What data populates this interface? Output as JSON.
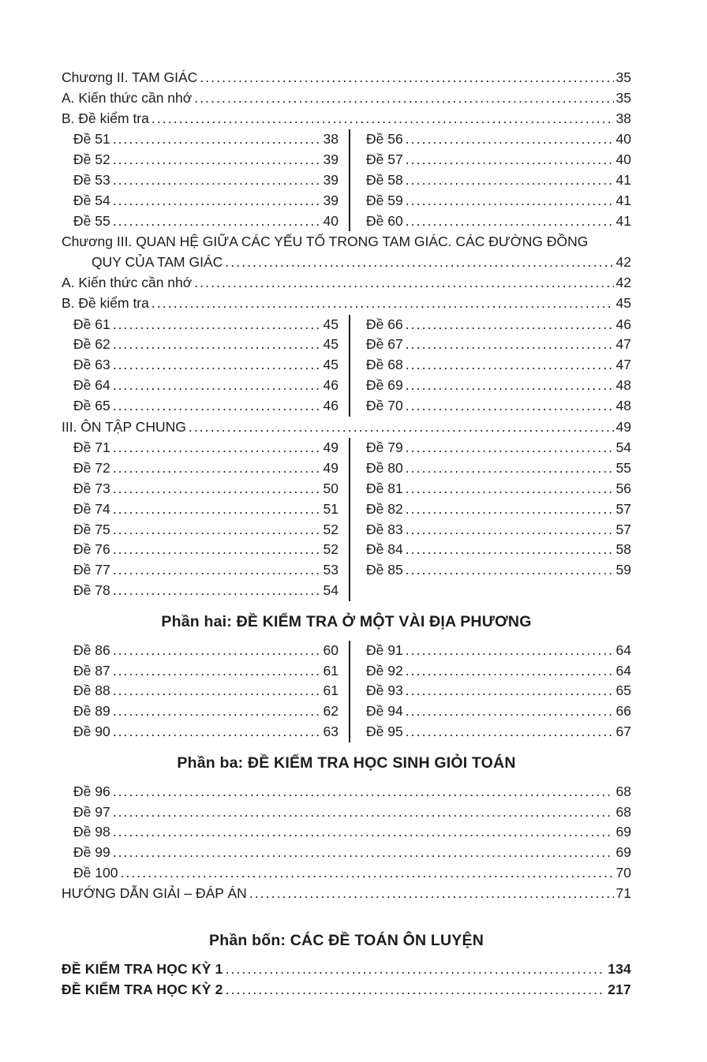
{
  "document": {
    "kind": "table-of-contents",
    "language": "vi"
  },
  "colors": {
    "background": "#ffffff",
    "text": "#1d1d1d",
    "divider": "#1d1d1d"
  },
  "toc": {
    "blocks": [
      {
        "type": "entry",
        "label": "Chương II. TAM GIÁC",
        "page": "35",
        "indent": 0
      },
      {
        "type": "entry",
        "label": "A. Kiến thức cần nhớ",
        "page": "35",
        "indent": 0
      },
      {
        "type": "entry",
        "label": "B. Đề kiểm tra",
        "page": "38",
        "indent": 0
      },
      {
        "type": "twocol",
        "left": [
          {
            "label": "Đề 51",
            "page": "38"
          },
          {
            "label": "Đề 52",
            "page": "39"
          },
          {
            "label": "Đề 53",
            "page": "39"
          },
          {
            "label": "Đề 54",
            "page": "39"
          },
          {
            "label": "Đề 55",
            "page": "40"
          }
        ],
        "right": [
          {
            "label": "Đề 56",
            "page": "40"
          },
          {
            "label": "Đề 57",
            "page": "40"
          },
          {
            "label": "Đề 58",
            "page": "41"
          },
          {
            "label": "Đề 59",
            "page": "41"
          },
          {
            "label": "Đề 60",
            "page": "41"
          }
        ]
      },
      {
        "type": "entry",
        "label": "Chương III. QUAN HỆ GIỮA CÁC YẾU TỐ TRONG TAM GIÁC. CÁC ĐƯỜNG ĐỒNG",
        "page": null,
        "indent": 0
      },
      {
        "type": "entry",
        "label": "QUY CỦA TAM GIÁC",
        "page": "42",
        "indent": 1
      },
      {
        "type": "entry",
        "label": "A. Kiến thức cần nhớ",
        "page": "42",
        "indent": 0
      },
      {
        "type": "entry",
        "label": "B. Đề kiểm tra",
        "page": "45",
        "indent": 0
      },
      {
        "type": "twocol",
        "left": [
          {
            "label": "Đề 61",
            "page": "45"
          },
          {
            "label": "Đề 62",
            "page": "45"
          },
          {
            "label": "Đề 63",
            "page": "45"
          },
          {
            "label": "Đề 64",
            "page": "46"
          },
          {
            "label": "Đề 65",
            "page": "46"
          }
        ],
        "right": [
          {
            "label": "Đề 66",
            "page": "46"
          },
          {
            "label": "Đề 67",
            "page": "47"
          },
          {
            "label": "Đề 68",
            "page": "47"
          },
          {
            "label": "Đề 69",
            "page": "48"
          },
          {
            "label": "Đề 70",
            "page": "48"
          }
        ]
      },
      {
        "type": "entry",
        "label": "III. ÔN TẬP CHUNG",
        "page": "49",
        "indent": 0
      },
      {
        "type": "twocol",
        "left": [
          {
            "label": "Đề 71",
            "page": "49"
          },
          {
            "label": "Đề 72",
            "page": "49"
          },
          {
            "label": "Đề 73",
            "page": "50"
          },
          {
            "label": "Đề 74",
            "page": "51"
          },
          {
            "label": "Đề 75",
            "page": "52"
          },
          {
            "label": "Đề 76",
            "page": "52"
          },
          {
            "label": "Đề 77",
            "page": "53"
          },
          {
            "label": "Đề 78",
            "page": "54"
          }
        ],
        "right": [
          {
            "label": "Đề 79",
            "page": "54"
          },
          {
            "label": "Đề 80",
            "page": "55"
          },
          {
            "label": "Đề 81",
            "page": "56"
          },
          {
            "label": "Đề 82",
            "page": "57"
          },
          {
            "label": "Đề 83",
            "page": "57"
          },
          {
            "label": "Đề 84",
            "page": "58"
          },
          {
            "label": "Đề 85",
            "page": "59"
          }
        ]
      },
      {
        "type": "heading",
        "prefix": "Phần hai:",
        "title": "ĐỀ KIỂM TRA Ở MỘT VÀI ĐỊA PHƯƠNG"
      },
      {
        "type": "twocol",
        "left": [
          {
            "label": "Đề 86",
            "page": "60"
          },
          {
            "label": "Đề 87",
            "page": "61"
          },
          {
            "label": "Đề 88",
            "page": "61"
          },
          {
            "label": "Đề 89",
            "page": "62"
          },
          {
            "label": "Đề 90",
            "page": "63"
          }
        ],
        "right": [
          {
            "label": "Đề 91",
            "page": "64"
          },
          {
            "label": "Đề 92",
            "page": "64"
          },
          {
            "label": "Đề 93",
            "page": "65"
          },
          {
            "label": "Đề 94",
            "page": "66"
          },
          {
            "label": "Đề 95",
            "page": "67"
          }
        ]
      },
      {
        "type": "heading",
        "prefix": "Phần ba:",
        "title": "ĐỀ KIỂM TRA HỌC SINH GIỎI TOÁN"
      },
      {
        "type": "entry",
        "label": "Đề 96",
        "page": "68",
        "indent": 2
      },
      {
        "type": "entry",
        "label": "Đề 97",
        "page": "68",
        "indent": 2
      },
      {
        "type": "entry",
        "label": "Đề 98",
        "page": "69",
        "indent": 2
      },
      {
        "type": "entry",
        "label": "Đề 99",
        "page": "69",
        "indent": 2
      },
      {
        "type": "entry",
        "label": "Đề 100",
        "page": "70",
        "indent": 2
      },
      {
        "type": "entry",
        "label": "HƯỚNG DẪN GIẢI – ĐÁP ÁN",
        "page": "71",
        "indent": 0
      },
      {
        "type": "heading",
        "prefix": "Phần bốn:",
        "title": "CÁC ĐỀ TOÁN ÔN LUYỆN",
        "large_gap": true
      },
      {
        "type": "entry",
        "label": "ĐỀ KIỂM TRA HỌC KỲ 1",
        "page": "134",
        "indent": 0,
        "bold": true
      },
      {
        "type": "entry",
        "label": "ĐỀ KIỂM TRA HỌC KỲ 2",
        "page": "217",
        "indent": 0,
        "bold": true
      }
    ]
  }
}
